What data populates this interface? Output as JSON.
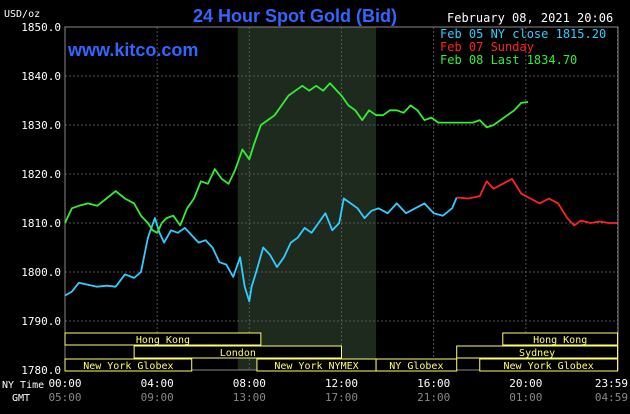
{
  "header": {
    "title": "24 Hour Spot Gold (Bid)",
    "date": "February 08, 2021 20:06",
    "unit": "USD/oz",
    "brand": "www.kitco.com"
  },
  "legend": [
    {
      "text": "Feb 05 NY close 1815.20",
      "color": "#33ccff"
    },
    {
      "text": "Feb 07 Sunday",
      "color": "#ff2222"
    },
    {
      "text": "Feb 08 Last 1834.70",
      "color": "#33ee33"
    }
  ],
  "sessions": [
    {
      "label": "Hong Kong",
      "start_h": 0.0,
      "end_h": 8.5,
      "row": 0
    },
    {
      "label": "Hong Kong",
      "start_h": 19.0,
      "end_h": 23.98,
      "row": 0
    },
    {
      "label": "London",
      "start_h": 3.0,
      "end_h": 12.0,
      "row": 1
    },
    {
      "label": "Sydney",
      "start_h": 17.0,
      "end_h": 23.98,
      "row": 1
    },
    {
      "label": "New York Globex",
      "start_h": 0.0,
      "end_h": 5.5,
      "row": 2
    },
    {
      "label": "New York NYMEX",
      "start_h": 8.33,
      "end_h": 13.5,
      "row": 2
    },
    {
      "label": "NY Globex",
      "start_h": 13.5,
      "end_h": 17.0,
      "row": 2
    },
    {
      "label": "New York Globex",
      "start_h": 18.0,
      "end_h": 23.98,
      "row": 2
    }
  ],
  "time_rows": {
    "ny_label": "NY Time",
    "gmt_label": "GMT",
    "ny": [
      "00:00",
      "04:00",
      "08:00",
      "12:00",
      "16:00",
      "20:00",
      "23:59"
    ],
    "gmt": [
      "05:00",
      "09:00",
      "13:00",
      "17:00",
      "21:00",
      "01:00",
      "04:59"
    ]
  },
  "chart_data": {
    "type": "line",
    "title": "24 Hour Spot Gold (Bid)",
    "ylabel": "USD/oz",
    "xlabel": "NY Time",
    "ylim": [
      1780,
      1850
    ],
    "xlim": [
      0,
      24
    ],
    "yticks": [
      "1780.0",
      "1790.0",
      "1800.0",
      "1810.0",
      "1820.0",
      "1830.0",
      "1840.0",
      "1850.0"
    ],
    "highlight_band_h": [
      7.5,
      13.5
    ],
    "grid": true,
    "series": [
      {
        "name": "Feb 05 NY close 1815.20",
        "color": "#33ccff",
        "x": [
          0,
          0.3,
          0.6,
          1,
          1.4,
          1.8,
          2.2,
          2.6,
          3,
          3.3,
          3.6,
          3.9,
          4.1,
          4.3,
          4.6,
          4.9,
          5.2,
          5.5,
          5.8,
          6.1,
          6.4,
          6.7,
          7,
          7.3,
          7.6,
          7.8,
          8,
          8.1,
          8.3,
          8.6,
          8.9,
          9.2,
          9.5,
          9.8,
          10.1,
          10.4,
          10.7,
          11,
          11.3,
          11.6,
          11.9,
          12.1,
          12.4,
          12.7,
          13,
          13.3,
          13.6,
          14,
          14.4,
          14.8,
          15.2,
          15.6,
          16,
          16.4,
          16.8,
          17
        ],
        "y": [
          1795.2,
          1796,
          1797.8,
          1797.4,
          1797,
          1797.2,
          1797,
          1799.5,
          1798.8,
          1800,
          1807,
          1811,
          1808,
          1806,
          1808.5,
          1808,
          1809,
          1807.5,
          1806,
          1806.5,
          1805,
          1802,
          1801.5,
          1799,
          1803,
          1797,
          1794,
          1797,
          1800,
          1805,
          1803.5,
          1801,
          1803,
          1806,
          1807,
          1809,
          1808,
          1810,
          1812,
          1808.5,
          1810,
          1815,
          1814,
          1813,
          1811,
          1812.5,
          1813,
          1812,
          1814,
          1812,
          1813,
          1814,
          1812,
          1811.5,
          1813,
          1815.2
        ]
      },
      {
        "name": "Feb 07 Sunday",
        "color": "#ff2222",
        "x": [
          17,
          17.5,
          18,
          18.3,
          18.6,
          19,
          19.4,
          19.8,
          20.2,
          20.6,
          21,
          21.4,
          21.8,
          22.1,
          22.4,
          22.8,
          23.2,
          23.6,
          23.98
        ],
        "y": [
          1815.2,
          1815,
          1815.5,
          1818.5,
          1817,
          1818,
          1819,
          1816,
          1815,
          1814,
          1815,
          1814,
          1811,
          1809.5,
          1810.5,
          1810,
          1810.3,
          1810,
          1810
        ]
      },
      {
        "name": "Feb 08 Last 1834.70",
        "color": "#33ee33",
        "x": [
          0,
          0.3,
          0.6,
          1,
          1.4,
          1.8,
          2.2,
          2.6,
          3,
          3.3,
          3.6,
          3.8,
          4,
          4.2,
          4.4,
          4.7,
          5,
          5.3,
          5.6,
          5.9,
          6.2,
          6.5,
          6.8,
          7.1,
          7.4,
          7.7,
          8,
          8.2,
          8.5,
          8.8,
          9.1,
          9.4,
          9.7,
          10,
          10.3,
          10.6,
          10.9,
          11.2,
          11.5,
          11.8,
          12,
          12.3,
          12.6,
          12.9,
          13.2,
          13.5,
          13.8,
          14.1,
          14.4,
          14.7,
          15,
          15.3,
          15.6,
          15.9,
          16.2,
          16.5,
          16.8,
          17.1,
          17.4,
          17.7,
          18,
          18.3,
          18.6,
          18.9,
          19.2,
          19.5,
          19.8,
          20.1
        ],
        "y": [
          1810,
          1813,
          1813.5,
          1814,
          1813.5,
          1815,
          1816.5,
          1815,
          1814,
          1811.5,
          1810,
          1808.5,
          1808,
          1810,
          1811,
          1811.5,
          1809.5,
          1813,
          1815,
          1818.5,
          1818,
          1821,
          1819,
          1818,
          1821,
          1825,
          1823,
          1826,
          1830,
          1831,
          1832,
          1834,
          1836,
          1837,
          1838,
          1837,
          1838,
          1837,
          1838.5,
          1837,
          1836,
          1834,
          1833,
          1831,
          1833,
          1832,
          1832,
          1833,
          1833,
          1832.5,
          1834,
          1833,
          1831,
          1831.5,
          1830.5,
          1830.5,
          1830.5,
          1830.5,
          1830.5,
          1830.5,
          1831,
          1829.5,
          1830,
          1831,
          1832,
          1833,
          1834.5,
          1834.7
        ]
      }
    ]
  }
}
